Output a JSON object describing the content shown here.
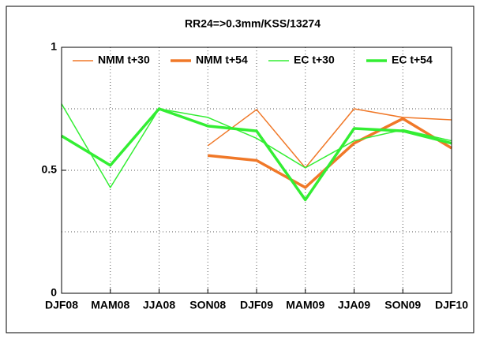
{
  "chart_data": {
    "type": "line",
    "title": "RR24=>0.3mm/KSS/13274",
    "categories": [
      "DJF08",
      "MAM08",
      "JJA08",
      "SON08",
      "DJF09",
      "MAM09",
      "JJA09",
      "SON09",
      "DJF10"
    ],
    "series": [
      {
        "name": "NMM t+30",
        "color": "#f07828",
        "width": 1.5,
        "values": [
          null,
          null,
          null,
          0.6,
          0.747,
          0.51,
          0.75,
          0.715,
          0.705
        ]
      },
      {
        "name": "NMM t+54",
        "color": "#f07828",
        "width": 3.5,
        "values": [
          null,
          null,
          null,
          0.56,
          0.54,
          0.43,
          0.61,
          0.71,
          0.59
        ]
      },
      {
        "name": "EC t+30",
        "color": "#33ee33",
        "width": 1.5,
        "values": [
          0.77,
          0.43,
          0.75,
          0.715,
          0.63,
          0.51,
          0.62,
          0.665,
          0.62
        ]
      },
      {
        "name": "EC t+54",
        "color": "#33ee33",
        "width": 3.5,
        "values": [
          0.64,
          0.52,
          0.75,
          0.68,
          0.66,
          0.38,
          0.67,
          0.66,
          0.61
        ]
      }
    ],
    "ylim": [
      0,
      1
    ],
    "yticks": [
      0,
      0.5,
      1
    ],
    "grid": true,
    "minor_ygrid": [
      0.25,
      0.75
    ],
    "legend": "top"
  }
}
